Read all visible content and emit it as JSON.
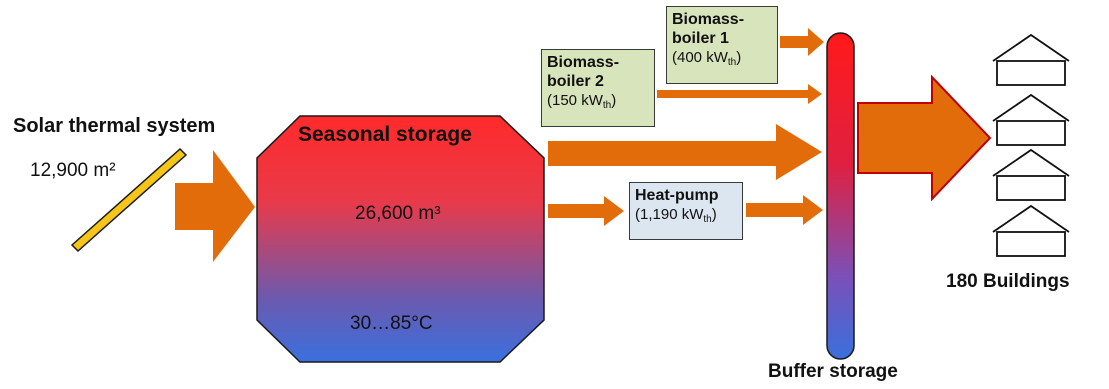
{
  "diagram": {
    "solar": {
      "title": "Solar thermal system",
      "area": "12,900 m²"
    },
    "seasonal_storage": {
      "title": "Seasonal storage",
      "volume": "26,600 m³",
      "temperature": "30…85°C"
    },
    "biomass_boiler_1": {
      "title_line1": "Biomass-",
      "title_line2": "boiler 1",
      "power_value": "(400 kW",
      "power_sub": "th",
      "power_close": ")"
    },
    "biomass_boiler_2": {
      "title_line1": "Biomass-",
      "title_line2": "boiler 2",
      "power_value": "(150 kW",
      "power_sub": "th",
      "power_close": ")"
    },
    "heat_pump": {
      "title": "Heat-pump",
      "power_value": "(1,190 kW",
      "power_sub": "th",
      "power_close": ")"
    },
    "buffer_storage": {
      "title": "Buffer storage"
    },
    "buildings": {
      "title": "180 Buildings"
    },
    "colors": {
      "arrow": "#E36C0A",
      "hot": "#FF2A2A",
      "cold": "#3A70DE",
      "boiler_box": "#D8E4BC",
      "heatpump_box": "#DCE6F1",
      "panel": "#F5C518"
    }
  }
}
